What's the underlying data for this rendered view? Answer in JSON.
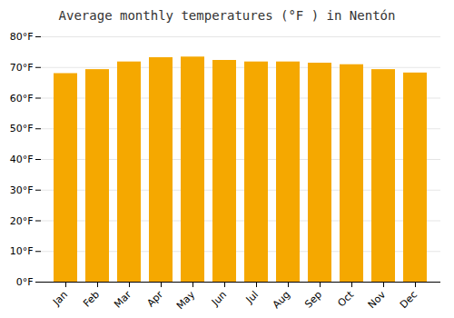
{
  "chart_data": {
    "type": "bar",
    "title": "Average monthly temperatures (°F ) in Nentón",
    "categories": [
      "Jan",
      "Feb",
      "Mar",
      "Apr",
      "May",
      "Jun",
      "Jul",
      "Aug",
      "Sep",
      "Oct",
      "Nov",
      "Dec"
    ],
    "values": [
      68.0,
      69.3,
      71.8,
      73.2,
      73.4,
      72.3,
      71.8,
      71.8,
      71.4,
      70.9,
      69.3,
      68.2
    ],
    "color": "#F5A800",
    "ylim": [
      0,
      80
    ],
    "yticks": [
      {
        "value": 0,
        "label": "0°F"
      },
      {
        "value": 10,
        "label": "10°F"
      },
      {
        "value": 20,
        "label": "20°F"
      },
      {
        "value": 30,
        "label": "30°F"
      },
      {
        "value": 40,
        "label": "40°F"
      },
      {
        "value": 50,
        "label": "50°F"
      },
      {
        "value": 60,
        "label": "60°F"
      },
      {
        "value": 70,
        "label": "70°F"
      },
      {
        "value": 80,
        "label": "80°F"
      }
    ],
    "grid": true
  }
}
